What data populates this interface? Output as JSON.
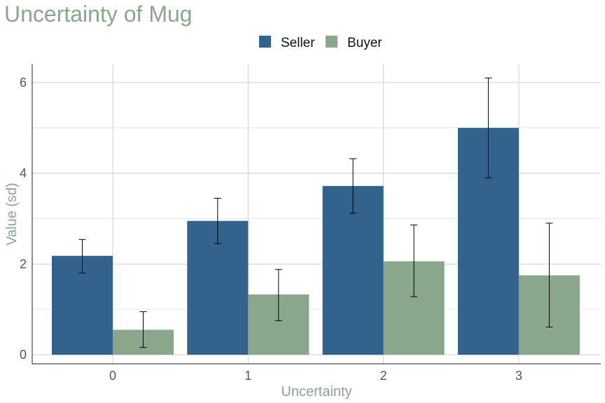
{
  "chart_data": {
    "type": "bar",
    "title": "Uncertainty of Mug",
    "xlabel": "Uncertainty",
    "ylabel": "Value (sd)",
    "categories": [
      "0",
      "1",
      "2",
      "3"
    ],
    "ylim": [
      -0.2,
      6.4
    ],
    "yticks": [
      0,
      2,
      4,
      6
    ],
    "grid": true,
    "legend_position": "top-center",
    "series": [
      {
        "name": "Seller",
        "color": "#33638d",
        "values": [
          2.18,
          2.95,
          3.72,
          5.0
        ],
        "error_low": [
          1.8,
          2.45,
          3.12,
          3.9
        ],
        "error_high": [
          2.54,
          3.45,
          4.32,
          6.1
        ]
      },
      {
        "name": "Buyer",
        "color": "#8ba78b",
        "values": [
          0.55,
          1.33,
          2.06,
          1.75
        ],
        "error_low": [
          0.16,
          0.75,
          1.28,
          0.61
        ],
        "error_high": [
          0.95,
          1.88,
          2.86,
          2.9
        ]
      }
    ]
  }
}
